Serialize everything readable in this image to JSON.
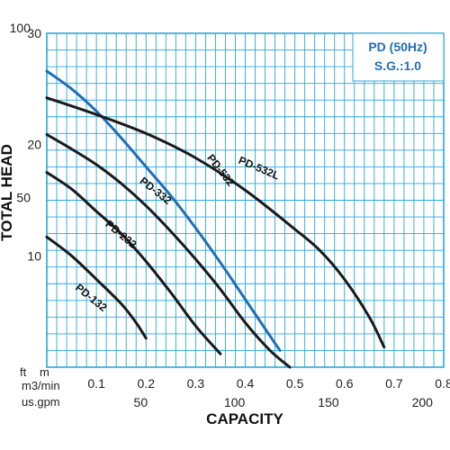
{
  "chart_data": {
    "type": "line",
    "title": "",
    "info_box": [
      "PD (50Hz)",
      "S.G.:1.0"
    ],
    "xlabel": "CAPACITY",
    "ylabel": "TOTAL HEAD",
    "x_unit_primary": "m3/min",
    "x_unit_secondary": "us.gpm",
    "y_unit_primary": "m",
    "y_unit_secondary": "ft",
    "xlim": [
      0,
      0.8
    ],
    "ylim": [
      0,
      30
    ],
    "x_ticks": [
      "0.1",
      "0.2",
      "0.3",
      "0.4",
      "0.5",
      "0.6",
      "0.7",
      "0.8"
    ],
    "x_ticks_secondary": [
      {
        "value": 50,
        "label": "50"
      },
      {
        "value": 100,
        "label": "100"
      },
      {
        "value": 150,
        "label": "150"
      },
      {
        "value": 200,
        "label": "200"
      }
    ],
    "y_ticks": [
      {
        "value": 10,
        "label": "10"
      },
      {
        "value": 20,
        "label": "20"
      },
      {
        "value": 30,
        "label": "30"
      }
    ],
    "y_ticks_secondary": [
      {
        "value": 50,
        "label": "50"
      },
      {
        "value": 100,
        "label": "100"
      }
    ],
    "grid": true,
    "colors": {
      "grid": "#28a8d8",
      "curve": "#1a1a1a",
      "highlight": "#1f6fb8",
      "accent": "#1f6fb8",
      "border": "#28a8d8"
    },
    "series": [
      {
        "name": "PD-132",
        "color": "#1a1a1a",
        "points": [
          [
            0.0,
            11.7
          ],
          [
            0.05,
            10.0
          ],
          [
            0.1,
            7.9
          ],
          [
            0.15,
            5.7
          ],
          [
            0.18,
            4.0
          ],
          [
            0.2,
            2.6
          ]
        ]
      },
      {
        "name": "PD-232",
        "color": "#1a1a1a",
        "points": [
          [
            0.0,
            17.5
          ],
          [
            0.05,
            16.0
          ],
          [
            0.1,
            14.0
          ],
          [
            0.15,
            12.0
          ],
          [
            0.2,
            9.5
          ],
          [
            0.25,
            6.7
          ],
          [
            0.3,
            3.7
          ],
          [
            0.35,
            1.2
          ]
        ]
      },
      {
        "name": "PD-332",
        "color": "#1a1a1a",
        "points": [
          [
            0.0,
            20.9
          ],
          [
            0.05,
            19.6
          ],
          [
            0.1,
            18.2
          ],
          [
            0.15,
            16.5
          ],
          [
            0.2,
            14.5
          ],
          [
            0.25,
            12.2
          ],
          [
            0.3,
            9.7
          ],
          [
            0.35,
            7.0
          ],
          [
            0.4,
            4.0
          ],
          [
            0.45,
            1.5
          ],
          [
            0.49,
            0.0
          ]
        ]
      },
      {
        "name": "PD-532",
        "color": "#1f6fb8",
        "points": [
          [
            0.0,
            26.6
          ],
          [
            0.05,
            25.0
          ],
          [
            0.1,
            23.0
          ],
          [
            0.15,
            20.6
          ],
          [
            0.2,
            18.0
          ],
          [
            0.25,
            15.4
          ],
          [
            0.3,
            12.5
          ],
          [
            0.35,
            9.4
          ],
          [
            0.4,
            6.1
          ],
          [
            0.45,
            2.8
          ],
          [
            0.47,
            1.5
          ]
        ]
      },
      {
        "name": "PD-532L",
        "color": "#1a1a1a",
        "points": [
          [
            0.0,
            24.2
          ],
          [
            0.1,
            22.7
          ],
          [
            0.2,
            21.0
          ],
          [
            0.3,
            18.8
          ],
          [
            0.4,
            15.9
          ],
          [
            0.5,
            12.4
          ],
          [
            0.55,
            10.5
          ],
          [
            0.6,
            7.9
          ],
          [
            0.65,
            4.5
          ],
          [
            0.68,
            1.8
          ]
        ]
      }
    ]
  }
}
